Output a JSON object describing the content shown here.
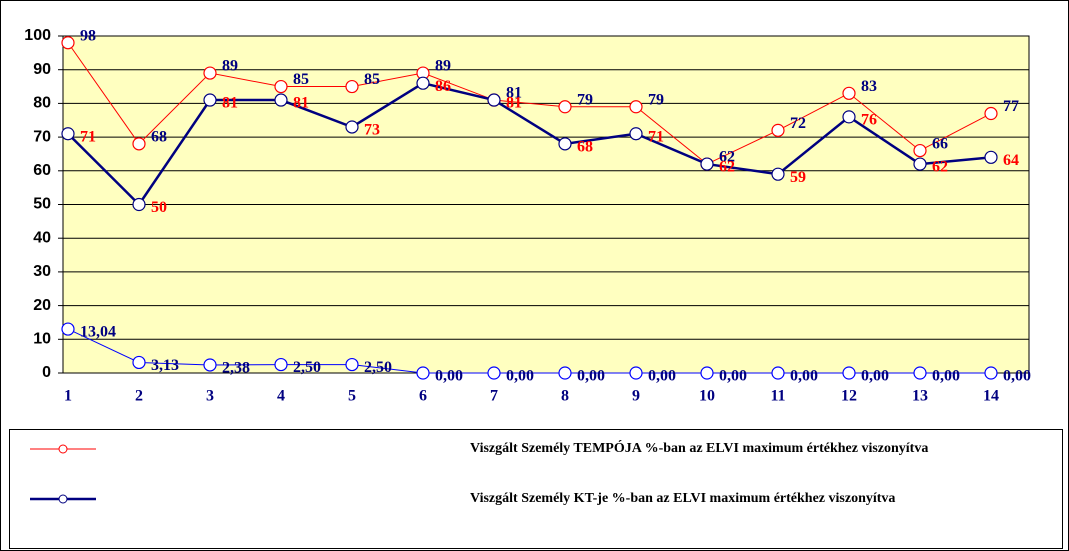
{
  "chart_data": {
    "type": "line",
    "categories": [
      "1",
      "2",
      "3",
      "4",
      "5",
      "6",
      "7",
      "8",
      "9",
      "10",
      "11",
      "12",
      "13",
      "14"
    ],
    "ylim": [
      0,
      100
    ],
    "yticks": [
      0,
      10,
      20,
      30,
      40,
      50,
      60,
      70,
      80,
      90,
      100
    ],
    "grid": true,
    "background": "#ffffc0",
    "series": [
      {
        "name": "Viszgált Személy TEMPÓJA %-ban az ELVI maximum értékhez viszonyítva",
        "color": "#ff0000",
        "label_color": "#000080",
        "width": 1,
        "values": [
          98,
          68,
          89,
          85,
          85,
          89,
          81,
          79,
          79,
          62,
          72,
          83,
          66,
          77
        ]
      },
      {
        "name": "Viszgált Személy KT-je %-ban az ELVI maximum értékhez viszonyítva",
        "color": "#000080",
        "label_color": "#ff0000",
        "width": 2.5,
        "values": [
          71,
          50,
          81,
          81,
          73,
          86,
          81,
          68,
          71,
          62,
          59,
          76,
          62,
          64
        ]
      },
      {
        "color": "#0000ff",
        "label_color": "#000080",
        "width": 1,
        "values": [
          13.04,
          3.13,
          2.38,
          2.5,
          2.5,
          0,
          0,
          0,
          0,
          0,
          0,
          0,
          0,
          0
        ],
        "value_labels": [
          "13,04",
          "3,13",
          "2,38",
          "2,50",
          "2,50",
          "0,00",
          "0,00",
          "0,00",
          "0,00",
          "0,00",
          "0,00",
          "0,00",
          "0,00",
          "0,00"
        ]
      }
    ]
  }
}
